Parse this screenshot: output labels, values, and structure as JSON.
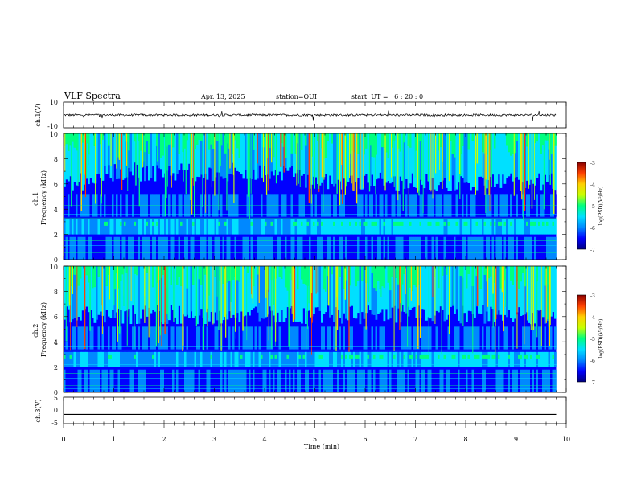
{
  "header": {
    "title": "VLF Spectra",
    "date": "Apr. 13, 2025",
    "station": "station=OUI",
    "start": "start  UT =   6 : 20 : 0"
  },
  "colors": {
    "cmap": [
      "#000080",
      "#0000ff",
      "#0088ff",
      "#00e0ff",
      "#00ff80",
      "#c8ff00",
      "#ffd000",
      "#ff4000",
      "#8b0000"
    ]
  },
  "chart_data": [
    {
      "type": "line",
      "name": "ch1-waveform",
      "ylabel": "ch.1(V)",
      "ylim": [
        -10,
        10
      ],
      "ytick_labels": [
        "10",
        "-10"
      ],
      "xlim": [
        0,
        10
      ],
      "baseline": 0,
      "grid": false
    },
    {
      "type": "heatmap",
      "name": "ch1-spectrogram",
      "ylabel": "ch.1\nFrequency (kHz)",
      "ylim": [
        0,
        10
      ],
      "xlim": [
        0,
        10
      ],
      "data_xmax": 9.8,
      "ytick_labels": [
        "0",
        "2",
        "4",
        "6",
        "8",
        "10"
      ],
      "colorbar": {
        "label": "log(PSD)(V²/Hz)",
        "range": [
          -7,
          -3
        ],
        "tick_labels": [
          "-3",
          "-4",
          "-5",
          "-6",
          "-7"
        ]
      }
    },
    {
      "type": "heatmap",
      "name": "ch2-spectrogram",
      "ylabel": "ch.2\nFrequency (kHz)",
      "ylim": [
        0,
        10
      ],
      "xlim": [
        0,
        10
      ],
      "data_xmax": 9.8,
      "ytick_labels": [
        "0",
        "2",
        "4",
        "6",
        "8",
        "10"
      ],
      "colorbar": {
        "label": "log(PSD)(V²/Hz)",
        "range": [
          -7,
          -3
        ],
        "tick_labels": [
          "-3",
          "-4",
          "-5",
          "-6",
          "-7"
        ]
      }
    },
    {
      "type": "line",
      "name": "ch3-waveform",
      "ylabel": "ch.3(V)",
      "ylim": [
        -5,
        5
      ],
      "ytick_labels": [
        "5",
        "0",
        "-5"
      ],
      "xlim": [
        0,
        10
      ],
      "baseline": -1.5,
      "grid": false,
      "xlabel": "Time (min)",
      "xtick_labels": [
        "0",
        "1",
        "2",
        "3",
        "4",
        "5",
        "6",
        "7",
        "8",
        "9",
        "10"
      ]
    }
  ]
}
